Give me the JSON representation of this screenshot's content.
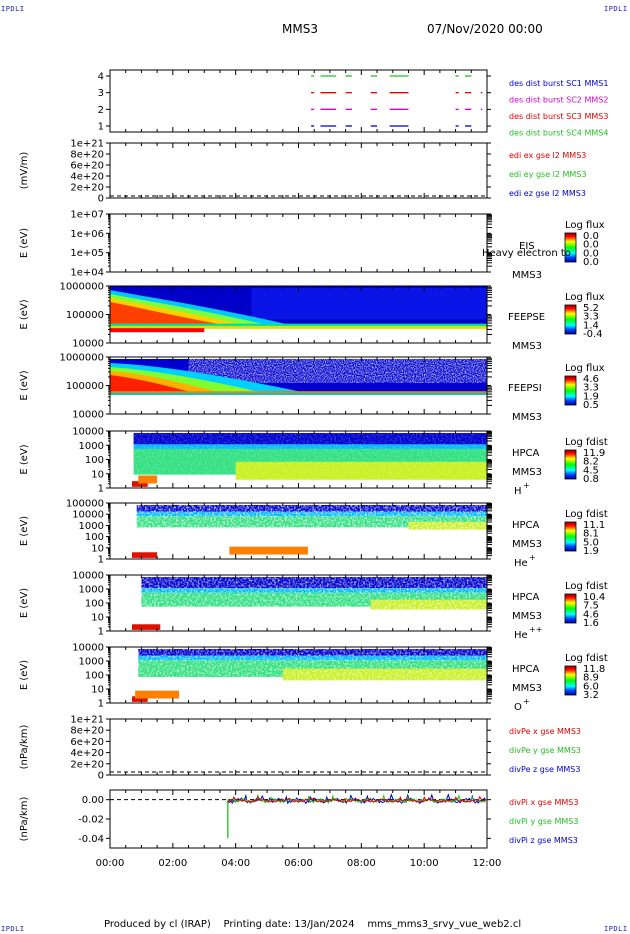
{
  "corner_labels": [
    "IPDLI",
    "IPDLI",
    "IPDLI",
    "IPDLI"
  ],
  "header": {
    "spacecraft": "MMS3",
    "datetime": "07/Nov/2020 00:00"
  },
  "footer": {
    "produced_by": "Produced by cl (IRAP)",
    "printing_date": "Printing date: 13/Jan/2024",
    "file": "mms_mms3_srvy_vue_web2.cl"
  },
  "colors": {
    "red": "#e00000",
    "green": "#20c020",
    "blue": "#0000d0",
    "magenta": "#d000d0",
    "black": "#000000"
  },
  "chart_data": {
    "type": "multi-panel",
    "x_axis": {
      "range": [
        "00:00",
        "12:00"
      ],
      "tick_labels": [
        "00:00",
        "02:00",
        "04:00",
        "06:00",
        "08:00",
        "10:00",
        "12:00"
      ]
    },
    "panels": [
      {
        "id": "burst",
        "type": "line",
        "ylabel": "",
        "y_ticks": [
          "4",
          "3",
          "2",
          "1"
        ],
        "legend": [
          {
            "text": "des dist burst SC1 MMS1",
            "color": "#0000d0"
          },
          {
            "text": "des dist burst SC2 MMS2",
            "color": "#d000d0"
          },
          {
            "text": "des dist burst SC3 MMS3",
            "color": "#e00000"
          },
          {
            "text": "des dist burst SC4 MMS4",
            "color": "#20c020"
          }
        ],
        "series": [
          {
            "level": 4,
            "color": "#20c020",
            "intervals": [
              [
                6.4,
                6.5
              ],
              [
                6.7,
                7.2
              ],
              [
                7.5,
                7.7
              ],
              [
                8.3,
                8.5
              ],
              [
                8.9,
                9.5
              ],
              [
                11.0,
                11.1
              ],
              [
                11.3,
                11.5
              ]
            ]
          },
          {
            "level": 3,
            "color": "#e00000",
            "intervals": [
              [
                6.4,
                6.5
              ],
              [
                6.7,
                7.2
              ],
              [
                7.5,
                7.7
              ],
              [
                8.3,
                8.5
              ],
              [
                8.9,
                9.5
              ],
              [
                11.0,
                11.1
              ],
              [
                11.3,
                11.5
              ],
              [
                11.8,
                11.85
              ]
            ]
          },
          {
            "level": 2,
            "color": "#d000d0",
            "intervals": [
              [
                6.4,
                6.5
              ],
              [
                6.7,
                7.2
              ],
              [
                7.5,
                7.7
              ],
              [
                8.3,
                8.5
              ],
              [
                8.9,
                9.5
              ],
              [
                11.0,
                11.1
              ],
              [
                11.3,
                11.5
              ],
              [
                11.8,
                11.85
              ]
            ]
          },
          {
            "level": 1,
            "color": "#0000d0",
            "intervals": [
              [
                6.4,
                6.5
              ],
              [
                6.7,
                7.2
              ],
              [
                7.5,
                7.7
              ],
              [
                8.3,
                8.5
              ],
              [
                8.9,
                9.5
              ],
              [
                11.0,
                11.1
              ],
              [
                11.3,
                11.5
              ]
            ]
          }
        ]
      },
      {
        "id": "edi",
        "type": "line",
        "ylabel": "(mV/m)",
        "y_ticks": [
          "1e+21",
          "8e+20",
          "6e+20",
          "4e+20",
          "2e+20",
          "0"
        ],
        "legend": [
          {
            "text": "edi ex gse l2 MMS3",
            "color": "#e00000"
          },
          {
            "text": "edi ey gse l2 MMS3",
            "color": "#20c020"
          },
          {
            "text": "edi ez gse l2 MMS3",
            "color": "#0000d0"
          }
        ]
      },
      {
        "id": "eis",
        "type": "heatmap",
        "ylabel": "E (eV)",
        "y_ticks": [
          "1e+07",
          "1e+06",
          "1e+05",
          "1e+04"
        ],
        "instrument": "EIS",
        "spacecraft": "MMS3",
        "overlay_label": "Heavy electron to",
        "colorbar": {
          "title": "Log flux",
          "ticks": [
            "0.0",
            "0.0",
            "0.0",
            "0.0"
          ]
        }
      },
      {
        "id": "feepse",
        "type": "heatmap",
        "ylabel": "E (eV)",
        "y_ticks": [
          "1000000",
          "100000",
          "10000"
        ],
        "instrument": "FEEPSE",
        "spacecraft": "MMS3",
        "colorbar": {
          "title": "Log flux",
          "ticks": [
            "5.2",
            "3.3",
            "1.4",
            "-0.4"
          ]
        }
      },
      {
        "id": "feepsi",
        "type": "heatmap",
        "ylabel": "E (eV)",
        "y_ticks": [
          "1000000",
          "100000",
          "10000"
        ],
        "instrument": "FEEPSI",
        "spacecraft": "MMS3",
        "colorbar": {
          "title": "Log flux",
          "ticks": [
            "4.6",
            "3.3",
            "1.9",
            "0.5"
          ]
        }
      },
      {
        "id": "hpca_h",
        "type": "heatmap",
        "ylabel": "E (eV)",
        "y_ticks": [
          "10000",
          "1000",
          "100",
          "10",
          "1"
        ],
        "instrument": "HPCA",
        "spacecraft": "MMS3",
        "species": "H",
        "charge": "+",
        "colorbar": {
          "title": "Log fdist",
          "ticks": [
            "11.9",
            "8.2",
            "4.5",
            "0.8"
          ]
        }
      },
      {
        "id": "hpca_he",
        "type": "heatmap",
        "ylabel": "E (eV)",
        "y_ticks": [
          "100000",
          "10000",
          "1000",
          "100",
          "10",
          "1"
        ],
        "instrument": "HPCA",
        "spacecraft": "MMS3",
        "species": "He",
        "charge": "+",
        "colorbar": {
          "title": "Log fdist",
          "ticks": [
            "11.1",
            "8.1",
            "5.0",
            "1.9"
          ]
        }
      },
      {
        "id": "hpca_hepp",
        "type": "heatmap",
        "ylabel": "E (eV)",
        "y_ticks": [
          "10000",
          "1000",
          "100",
          "10",
          "1"
        ],
        "instrument": "HPCA",
        "spacecraft": "MMS3",
        "species": "He",
        "charge": "++",
        "colorbar": {
          "title": "Log fdist",
          "ticks": [
            "10.4",
            "7.5",
            "4.6",
            "1.6"
          ]
        }
      },
      {
        "id": "hpca_o",
        "type": "heatmap",
        "ylabel": "E (eV)",
        "y_ticks": [
          "10000",
          "1000",
          "100",
          "10",
          "1"
        ],
        "instrument": "HPCA",
        "spacecraft": "MMS3",
        "species": "O",
        "charge": "+",
        "colorbar": {
          "title": "Log fdist",
          "ticks": [
            "11.8",
            "8.9",
            "6.0",
            "3.2"
          ]
        }
      },
      {
        "id": "divpe",
        "type": "line",
        "ylabel": "(nPa/km)",
        "y_ticks": [
          "1e+21",
          "8e+20",
          "6e+20",
          "4e+20",
          "2e+20",
          "0"
        ],
        "legend": [
          {
            "text": "divPe x gse MMS3",
            "color": "#e00000"
          },
          {
            "text": "divPe y gse MMS3",
            "color": "#20c020"
          },
          {
            "text": "divPe z gse MMS3",
            "color": "#0000d0"
          }
        ]
      },
      {
        "id": "divpi",
        "type": "line",
        "ylabel": "(nPa/km)",
        "y_ticks": [
          "0.00",
          "-0.02",
          "-0.04"
        ],
        "ylim": [
          -0.05,
          0.01
        ],
        "legend": [
          {
            "text": "divPi x gse MMS3",
            "color": "#e00000"
          },
          {
            "text": "divPi y gse MMS3",
            "color": "#20c020"
          },
          {
            "text": "divPi z gse MMS3",
            "color": "#0000d0"
          }
        ],
        "data_start_hour": 3.75,
        "spike_min": -0.04
      }
    ]
  }
}
